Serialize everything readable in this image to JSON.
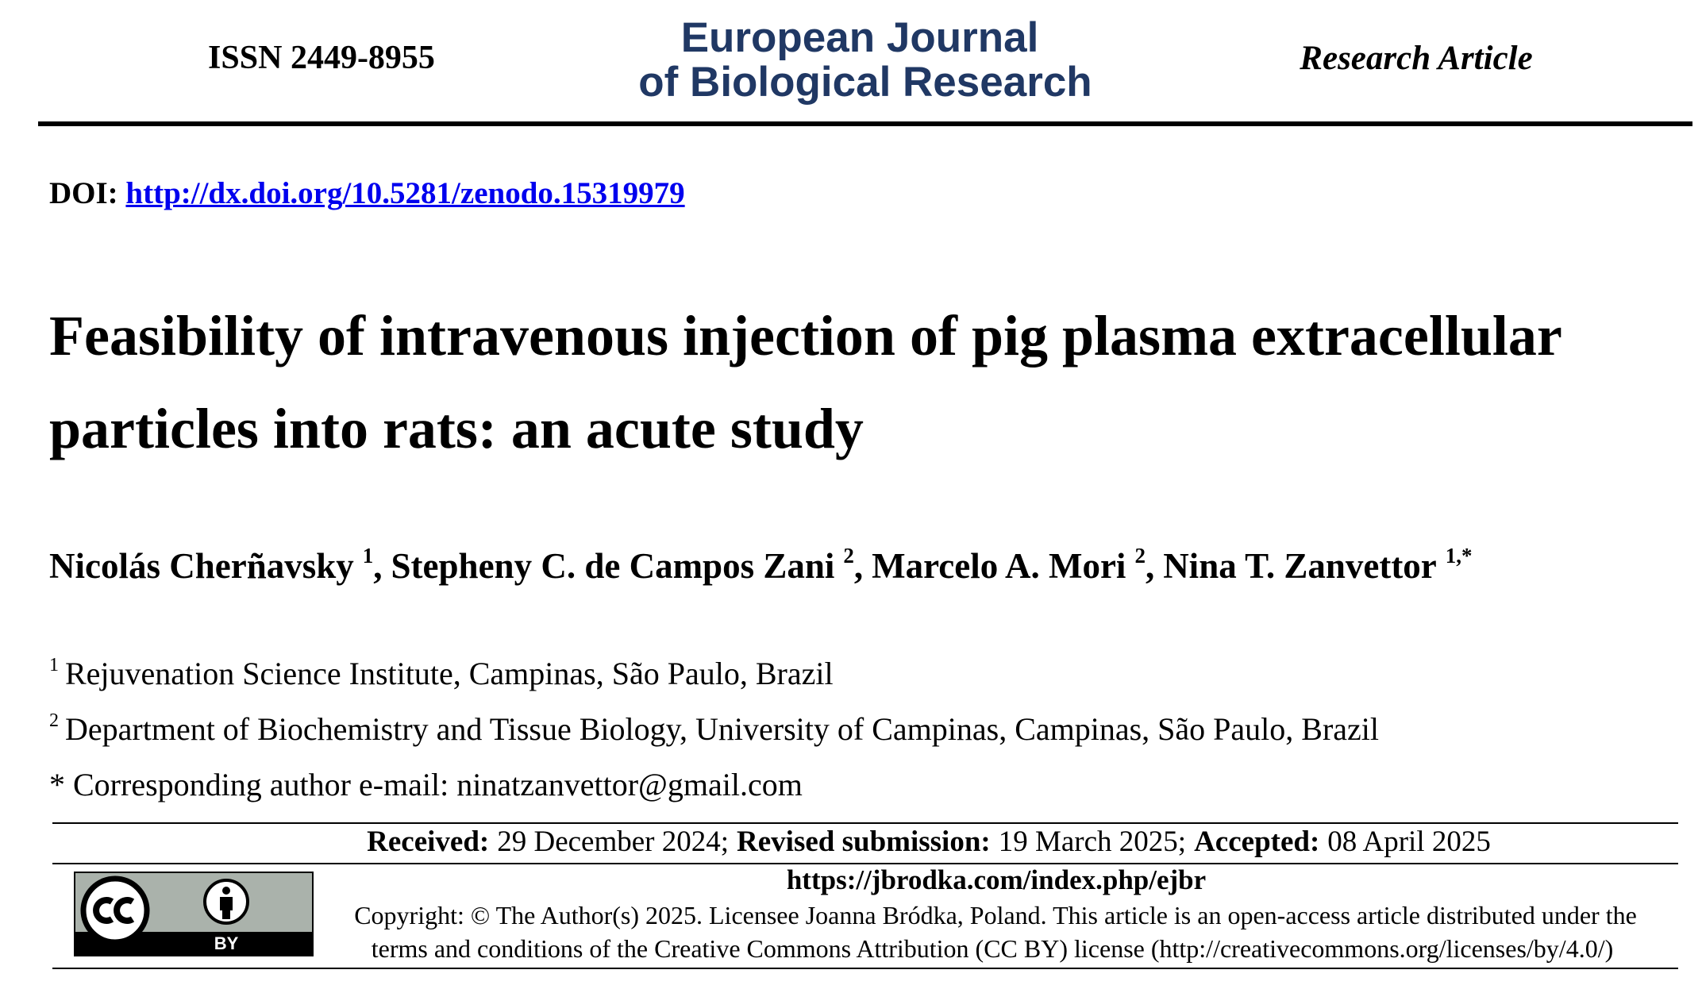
{
  "header": {
    "issn": "ISSN 2449-8955",
    "journal": [
      "European Journal",
      "of Biological Research"
    ],
    "article_type": "Research Article"
  },
  "doi": {
    "label": "DOI:",
    "url": "http://dx.doi.org/10.5281/zenodo.15319979"
  },
  "title": [
    "Feasibility of intravenous injection of pig plasma extracellular",
    "particles into rats: an acute study"
  ],
  "authors": [
    {
      "name": "Nicolás Cherñavsky",
      "sup": "1",
      "sep": ","
    },
    {
      "name": "Stepheny C. de Campos Zani",
      "sup": "2",
      "sep": ","
    },
    {
      "name": "Marcelo A. Mori",
      "sup": "2",
      "sep": ","
    },
    {
      "name": "Nina T. Zanvettor",
      "sup": "1,*"
    }
  ],
  "affiliations": [
    {
      "mark": "1",
      "text": "Rejuvenation Science Institute, Campinas, São Paulo, Brazil"
    },
    {
      "mark": "2",
      "text": "Department of Biochemistry and Tissue Biology, University of Campinas, Campinas, São Paulo, Brazil"
    }
  ],
  "corresponding": {
    "mark": "*",
    "text": "Corresponding author e-mail: ninatzanvettor@gmail.com"
  },
  "dates": [
    {
      "label": "Received:",
      "value": "29 December 2024;"
    },
    {
      "label": "Revised submission:",
      "value": "19 March 2025;"
    },
    {
      "label": "Accepted:",
      "value": "08 April 2025"
    }
  ],
  "license": {
    "badge": "BY",
    "url": "https://jbrodka.com/index.php/ejbr",
    "copyright": [
      "Copyright: © The Author(s) 2025. Licensee Joanna Bródka, Poland. This article is an open-access article distributed under the",
      "terms and conditions of the Creative Commons Attribution (CC BY) license (http://creativecommons.org/licenses/by/4.0/)"
    ]
  }
}
